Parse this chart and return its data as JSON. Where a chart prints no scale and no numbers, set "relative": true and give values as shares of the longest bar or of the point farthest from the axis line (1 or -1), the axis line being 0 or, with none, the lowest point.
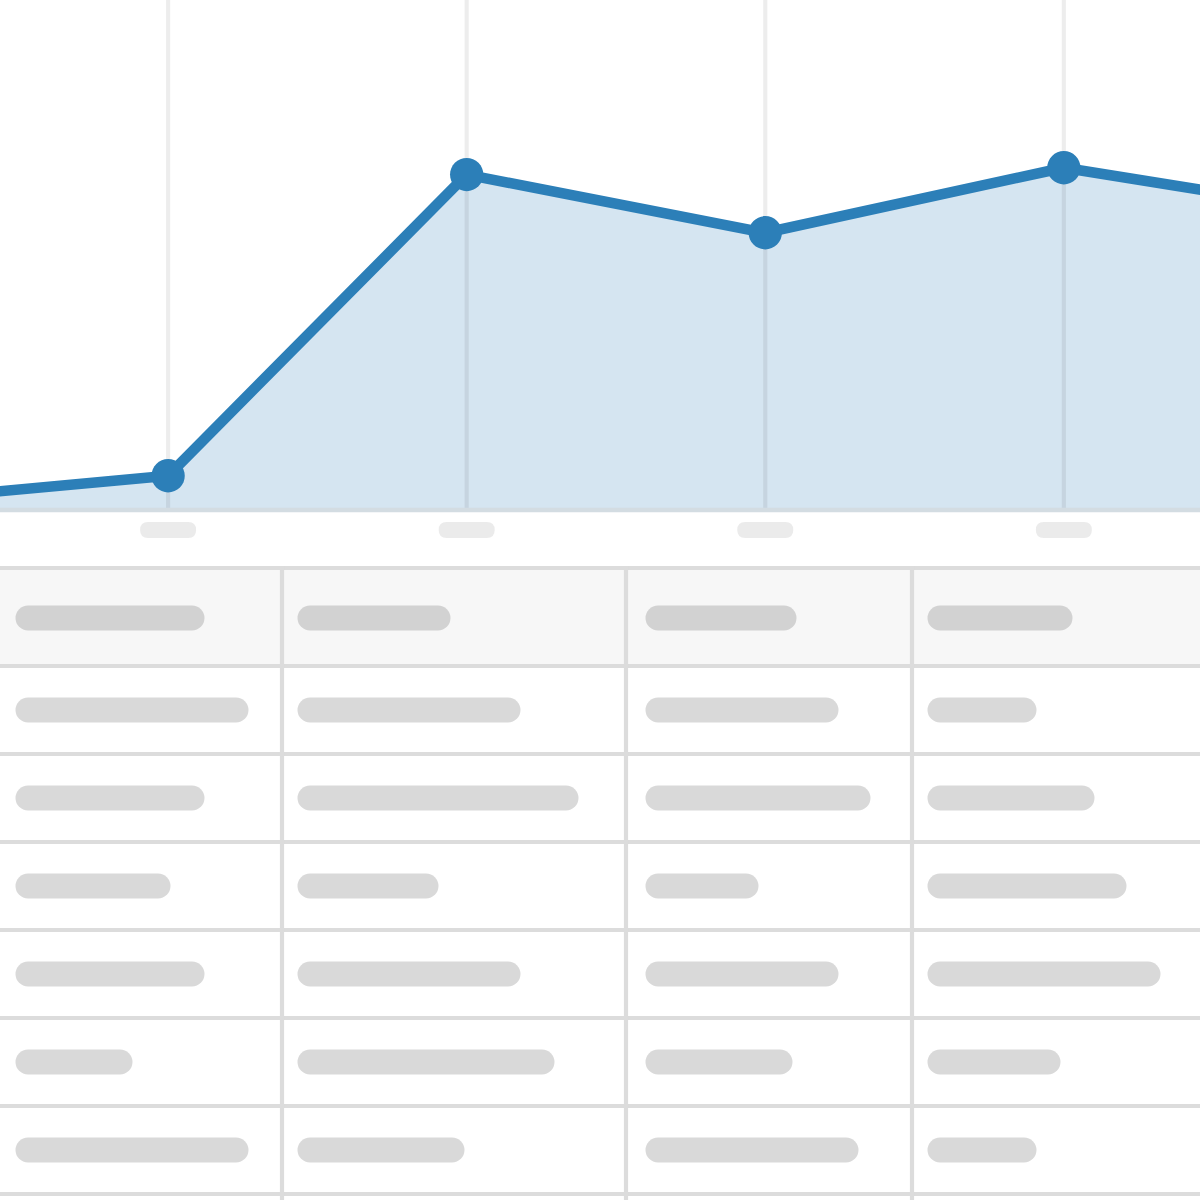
{
  "chart_data": {
    "type": "area",
    "categories": [
      null,
      null,
      null,
      null,
      null,
      null
    ],
    "series": [
      {
        "color": "#2c7fb8",
        "values": [
          0.02,
          0.1,
          0.98,
          0.81,
          1,
          0.86
        ]
      }
    ],
    "relative": true,
    "marker": "circle",
    "grid": "x"
  }
}
